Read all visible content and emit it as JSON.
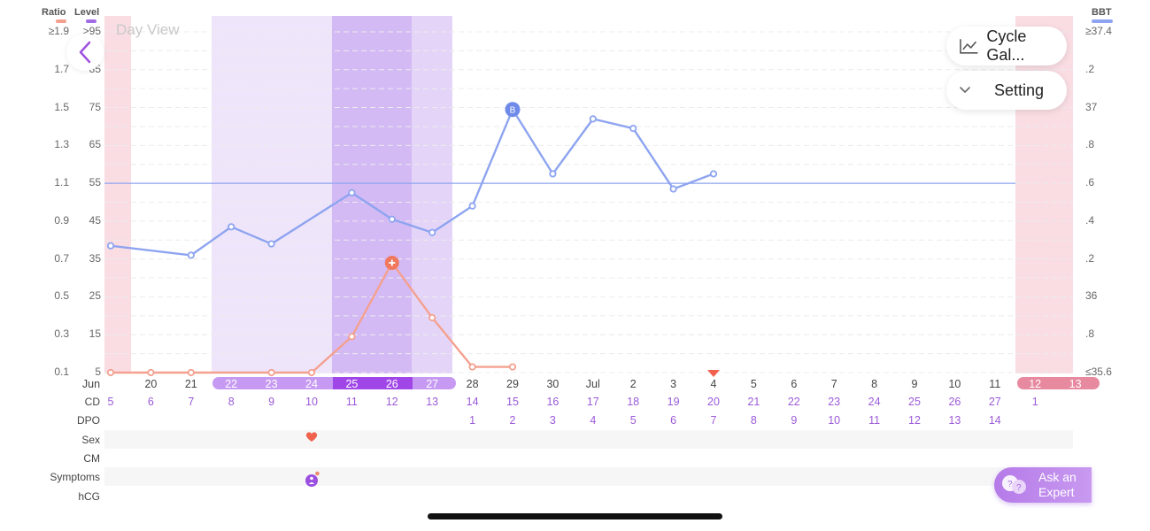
{
  "header": {
    "ratio_label": "Ratio",
    "level_label": "Level",
    "bbt_label": "BBT",
    "ratio_color": "#f4a08f",
    "level_color": "#a36ae6",
    "bbt_color": "#8ea4f0",
    "view_label": "Day View"
  },
  "axes": {
    "ratio_ticks": [
      "≥1.9",
      "1.7",
      "1.5",
      "1.3",
      "1.1",
      "0.9",
      "0.7",
      "0.5",
      "0.3",
      "0.1"
    ],
    "level_ticks": [
      ">95",
      "85",
      "75",
      "65",
      "55",
      "45",
      "35",
      "25",
      "15",
      "5"
    ],
    "bbt_ticks": [
      "≥37.4",
      ".2",
      "37",
      ".8",
      ".6",
      ".4",
      ".2",
      "36",
      ".8",
      "≤35.6"
    ]
  },
  "buttons": {
    "cycle_gallery_label": "Cycle Gal...",
    "setting_label": "Setting",
    "ask_line1": "Ask an",
    "ask_line2": "Expert",
    "back_icon": "chevron-left-icon"
  },
  "dates": [
    "Jun",
    "20",
    "21",
    "22",
    "23",
    "24",
    "25",
    "26",
    "27",
    "28",
    "29",
    "30",
    "Jul",
    "2",
    "3",
    "4",
    "5",
    "6",
    "7",
    "8",
    "9",
    "10",
    "11",
    "12",
    "13"
  ],
  "cd": [
    "5",
    "6",
    "7",
    "8",
    "9",
    "10",
    "11",
    "12",
    "13",
    "14",
    "15",
    "16",
    "17",
    "18",
    "19",
    "20",
    "21",
    "22",
    "23",
    "24",
    "25",
    "26",
    "27",
    "1"
  ],
  "dpo": [
    "1",
    "2",
    "3",
    "4",
    "5",
    "6",
    "7",
    "8",
    "9",
    "10",
    "11",
    "12",
    "13",
    "14"
  ],
  "rows": {
    "date_row_label": "Jun",
    "cd_label": "CD",
    "dpo_label": "DPO",
    "sex_label": "Sex",
    "cm_label": "CM",
    "symptoms_label": "Symptoms",
    "hcg_label": "hCG"
  },
  "chart_data": {
    "type": "line",
    "x": [
      "Jun 19",
      "Jun 20",
      "Jun 21",
      "Jun 22",
      "Jun 23",
      "Jun 24",
      "Jun 25",
      "Jun 26",
      "Jun 27",
      "Jun 28",
      "Jun 29",
      "Jun 30",
      "Jul 1",
      "Jul 2",
      "Jul 3",
      "Jul 4"
    ],
    "series": [
      {
        "name": "BBT",
        "axis": "BBT",
        "values": [
          36.27,
          null,
          36.22,
          36.37,
          36.28,
          null,
          36.55,
          36.41,
          36.34,
          36.48,
          36.99,
          36.65,
          36.94,
          36.89,
          36.57,
          36.65
        ],
        "color": "#8ea4f0"
      },
      {
        "name": "Ratio",
        "axis": "Ratio",
        "values": [
          0.1,
          0.1,
          0.1,
          null,
          0.1,
          0.1,
          0.29,
          0.68,
          0.39,
          0.13,
          0.13,
          null,
          null,
          null,
          null,
          null
        ],
        "color": "#f4a08f"
      }
    ],
    "coverline_bbt": 36.6,
    "ratio_range": [
      0.1,
      1.9
    ],
    "level_range": [
      5,
      95
    ],
    "bbt_range": [
      35.6,
      37.4
    ],
    "markers": {
      "bbt_peak_label": "B",
      "ratio_peak": "plus-icon"
    },
    "fertile_window": [
      "Jun 22",
      "Jun 27"
    ],
    "peak_days": [
      "Jun 25",
      "Jun 26"
    ],
    "period_days": [
      "Jun 19",
      "Jul 12",
      "Jul 13"
    ],
    "ovulation_marker_date": "Jul 4"
  }
}
